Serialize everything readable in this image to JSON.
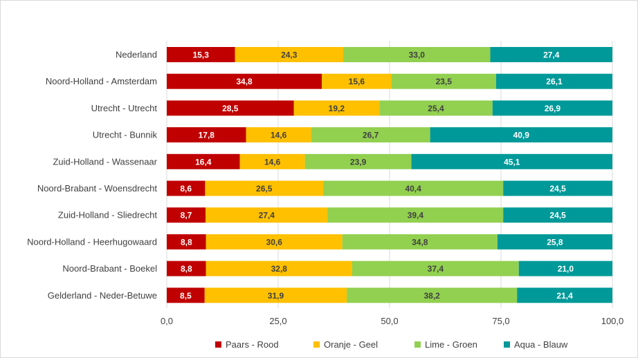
{
  "chart_data": {
    "type": "bar",
    "orientation": "horizontal",
    "stacked": true,
    "title": "",
    "xlabel": "",
    "ylabel": "",
    "xlim": [
      0,
      100
    ],
    "xticks": [
      0,
      25,
      50,
      75,
      100
    ],
    "xtick_labels": [
      "0,0",
      "25,0",
      "50,0",
      "75,0",
      "100,0"
    ],
    "grid": "vertical",
    "legend_position": "bottom",
    "categories": [
      "Nederland",
      "Noord-Holland - Amsterdam",
      "Utrecht - Utrecht",
      "Utrecht - Bunnik",
      "Zuid-Holland - Wassenaar",
      "Noord-Brabant - Woensdrecht",
      "Zuid-Holland - Sliedrecht",
      "Noord-Holland - Heerhugowaard",
      "Noord-Brabant - Boekel",
      "Gelderland - Neder-Betuwe"
    ],
    "series": [
      {
        "name": "Paars - Rood",
        "color": "#c00000",
        "label_color": "#ffffff",
        "values": [
          15.3,
          34.8,
          28.5,
          17.8,
          16.4,
          8.6,
          8.7,
          8.8,
          8.8,
          8.5
        ],
        "labels": [
          "15,3",
          "34,8",
          "28,5",
          "17,8",
          "16,4",
          "8,6",
          "8,7",
          "8,8",
          "8,8",
          "8,5"
        ]
      },
      {
        "name": "Oranje - Geel",
        "color": "#ffc000",
        "label_color": "#404040",
        "values": [
          24.3,
          15.6,
          19.2,
          14.6,
          14.6,
          26.5,
          27.4,
          30.6,
          32.8,
          31.9
        ],
        "labels": [
          "24,3",
          "15,6",
          "19,2",
          "14,6",
          "14,6",
          "26,5",
          "27,4",
          "30,6",
          "32,8",
          "31,9"
        ]
      },
      {
        "name": "Lime - Groen",
        "color": "#92d050",
        "label_color": "#404040",
        "values": [
          33.0,
          23.5,
          25.4,
          26.7,
          23.9,
          40.4,
          39.4,
          34.8,
          37.4,
          38.2
        ],
        "labels": [
          "33,0",
          "23,5",
          "25,4",
          "26,7",
          "23,9",
          "40,4",
          "39,4",
          "34,8",
          "37,4",
          "38,2"
        ]
      },
      {
        "name": "Aqua - Blauw",
        "color": "#009999",
        "label_color": "#ffffff",
        "values": [
          27.4,
          26.1,
          26.9,
          40.9,
          45.1,
          24.5,
          24.5,
          25.8,
          21.0,
          21.4
        ],
        "labels": [
          "27,4",
          "26,1",
          "26,9",
          "40,9",
          "45,1",
          "24,5",
          "24,5",
          "25,8",
          "21,0",
          "21,4"
        ]
      }
    ]
  }
}
